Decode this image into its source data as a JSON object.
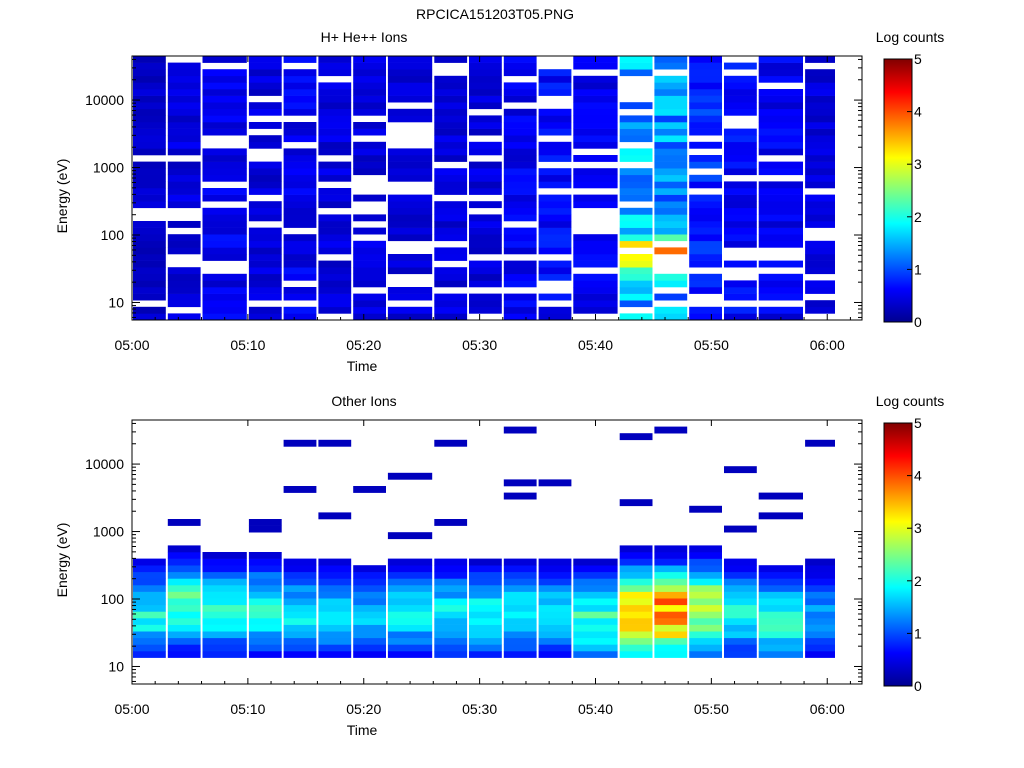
{
  "figure_title": "RPCICA151203T05.PNG",
  "colors": {
    "axis": "#000000",
    "background": "#ffffff"
  },
  "chart_data": [
    {
      "type": "heatmap",
      "title": "H+ He++ Ions",
      "xlabel": "Time",
      "ylabel": "Energy (eV)",
      "y_scale": "log",
      "x_range": [
        "05:00",
        "06:03"
      ],
      "y_range": [
        5.5,
        45000
      ],
      "x_ticks": [
        "05:00",
        "05:10",
        "05:20",
        "05:30",
        "05:40",
        "05:50",
        "06:00"
      ],
      "y_ticks": [
        "10",
        "100",
        "1000",
        "10000"
      ],
      "colorbar": {
        "label": "Log counts",
        "min": 0,
        "max": 5,
        "ticks": [
          "0",
          "1",
          "2",
          "3",
          "4",
          "5"
        ]
      },
      "time_bins": [
        "05:00",
        "05:03",
        "05:06",
        "05:10",
        "05:13",
        "05:16",
        "05:19",
        "05:22",
        "05:26",
        "05:29",
        "05:32",
        "05:35",
        "05:38",
        "05:42",
        "05:45",
        "05:48",
        "05:51",
        "05:54",
        "05:58"
      ],
      "counts_profile": [
        0.4,
        0.5,
        0.6,
        0.5,
        0.6,
        0.5,
        0.5,
        0.5,
        0.5,
        0.5,
        0.6,
        0.7,
        0.6,
        1.6,
        1.5,
        0.9,
        0.7,
        0.6,
        0.5
      ],
      "peak_energy_eV": [
        0,
        0,
        0,
        0,
        0,
        0,
        0,
        0,
        0,
        0,
        0,
        0,
        0,
        55,
        55,
        0,
        0,
        0,
        0
      ]
    },
    {
      "type": "heatmap",
      "title": "Other Ions",
      "xlabel": "Time",
      "ylabel": "Energy (eV)",
      "y_scale": "log",
      "x_range": [
        "05:00",
        "06:03"
      ],
      "y_range": [
        5.5,
        45000
      ],
      "x_ticks": [
        "05:00",
        "05:10",
        "05:20",
        "05:30",
        "05:40",
        "05:50",
        "06:00"
      ],
      "y_ticks": [
        "10",
        "100",
        "1000",
        "10000"
      ],
      "colorbar": {
        "label": "Log counts",
        "min": 0,
        "max": 5,
        "ticks": [
          "0",
          "1",
          "2",
          "3",
          "4",
          "5"
        ]
      },
      "time_bins": [
        "05:00",
        "05:03",
        "05:06",
        "05:10",
        "05:13",
        "05:16",
        "05:19",
        "05:22",
        "05:26",
        "05:29",
        "05:32",
        "05:35",
        "05:38",
        "05:42",
        "05:45",
        "05:48",
        "05:51",
        "05:54",
        "05:58"
      ],
      "counts_profile": [
        2.0,
        2.3,
        2.0,
        2.1,
        1.8,
        1.7,
        1.6,
        1.8,
        1.9,
        1.9,
        1.9,
        1.8,
        2.2,
        3.8,
        3.9,
        3.0,
        1.9,
        2.1,
        1.4
      ],
      "peak_energy_eV": [
        60,
        80,
        70,
        70,
        60,
        60,
        60,
        60,
        60,
        60,
        60,
        60,
        50,
        60,
        60,
        70,
        60,
        50,
        60
      ]
    }
  ]
}
